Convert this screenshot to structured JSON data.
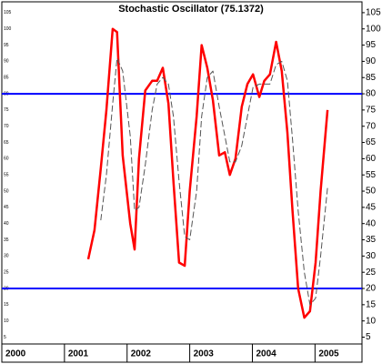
{
  "chart_data": {
    "type": "line",
    "title": "Stochastic Oscillator (75.1372)",
    "xlim": [
      2000.0,
      2005.75
    ],
    "xticks": [
      2000,
      2001,
      2002,
      2003,
      2004,
      2005
    ],
    "ylim": [
      2.9,
      107.5
    ],
    "yticks": [
      5,
      10,
      15,
      20,
      25,
      30,
      35,
      40,
      45,
      50,
      55,
      60,
      65,
      70,
      75,
      80,
      85,
      90,
      95,
      100,
      105
    ],
    "reference_lines": [
      {
        "value": 80,
        "color": "#0000ff"
      },
      {
        "value": 20,
        "color": "#0000ff"
      }
    ],
    "series": [
      {
        "color": "#ff0000",
        "dash": false,
        "x": [
          2001.38,
          2001.48,
          2001.58,
          2001.67,
          2001.77,
          2001.84,
          2001.93,
          2002.05,
          2002.12,
          2002.19,
          2002.29,
          2002.4,
          2002.48,
          2002.57,
          2002.66,
          2002.74,
          2002.83,
          2002.92,
          2003.0,
          2003.11,
          2003.19,
          2003.28,
          2003.37,
          2003.47,
          2003.56,
          2003.64,
          2003.73,
          2003.83,
          2003.92,
          2004.01,
          2004.11,
          2004.19,
          2004.28,
          2004.38,
          2004.47,
          2004.56,
          2004.64,
          2004.73,
          2004.83,
          2004.92,
          2005.01,
          2005.09,
          2005.2
        ],
        "values": [
          29,
          38,
          57,
          75,
          100,
          99,
          61,
          40,
          32,
          60,
          81,
          84,
          84,
          88,
          77,
          53,
          28,
          27,
          50,
          73,
          95,
          88,
          78,
          61,
          62,
          55,
          60,
          76,
          83,
          86,
          79,
          84,
          86,
          96,
          87,
          68,
          44,
          20,
          11,
          13,
          28,
          50,
          75
        ]
      },
      {
        "color": "#555555",
        "dash": true,
        "x": [
          2001.58,
          2001.67,
          2001.77,
          2001.84,
          2001.93,
          2002.05,
          2002.12,
          2002.19,
          2002.29,
          2002.4,
          2002.48,
          2002.57,
          2002.66,
          2002.74,
          2002.83,
          2002.92,
          2003.0,
          2003.11,
          2003.19,
          2003.28,
          2003.37,
          2003.47,
          2003.56,
          2003.64,
          2003.73,
          2003.83,
          2003.92,
          2004.01,
          2004.11,
          2004.19,
          2004.28,
          2004.38,
          2004.47,
          2004.56,
          2004.64,
          2004.73,
          2004.83,
          2004.92,
          2005.01,
          2005.09,
          2005.2
        ],
        "values": [
          41,
          55,
          77,
          91,
          87,
          67,
          44,
          45,
          58,
          75,
          83,
          85,
          83,
          73,
          53,
          36,
          35,
          50,
          73,
          85,
          87,
          76,
          67,
          59,
          59,
          64,
          73,
          82,
          83,
          83,
          83,
          89,
          90,
          84,
          66,
          44,
          25,
          15,
          17,
          30,
          51
        ]
      }
    ]
  }
}
